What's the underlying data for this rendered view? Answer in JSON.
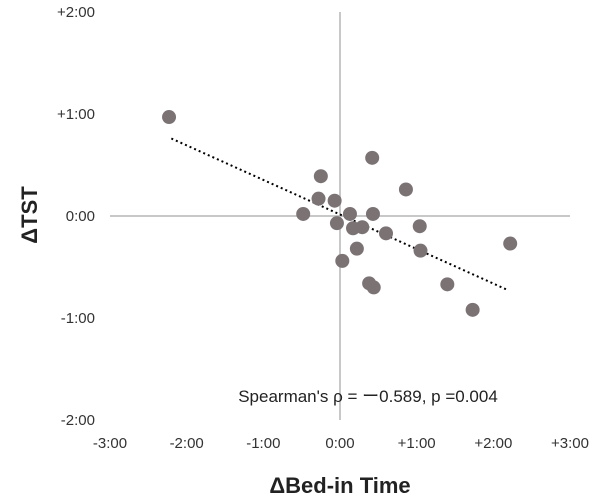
{
  "chart_data": {
    "type": "scatter",
    "title": "",
    "xlabel": "ΔBed-in Time",
    "ylabel": "ΔTST",
    "xlim": [
      -3,
      3
    ],
    "ylim": [
      -2,
      2
    ],
    "x_ticks": [
      -3,
      -2,
      -1,
      0,
      1,
      2,
      3
    ],
    "x_tick_labels": [
      "-3:00",
      "-2:00",
      "-1:00",
      "0:00",
      "+1:00",
      "+2:00",
      "+3:00"
    ],
    "y_ticks": [
      -2,
      -1,
      0,
      1,
      2
    ],
    "y_tick_labels": [
      "-2:00",
      "-1:00",
      "0:00",
      "+1:00",
      "+2:00"
    ],
    "grid": false,
    "point_color": "#7b7274",
    "trend_color": "#000000",
    "axis_color": "#c8c8c8",
    "points": [
      {
        "x": -2.23,
        "y": 0.97
      },
      {
        "x": -0.48,
        "y": 0.02
      },
      {
        "x": -0.28,
        "y": 0.17
      },
      {
        "x": -0.25,
        "y": 0.39
      },
      {
        "x": -0.07,
        "y": 0.15
      },
      {
        "x": -0.04,
        "y": -0.07
      },
      {
        "x": 0.03,
        "y": -0.44
      },
      {
        "x": 0.13,
        "y": 0.02
      },
      {
        "x": 0.17,
        "y": -0.12
      },
      {
        "x": 0.22,
        "y": -0.32
      },
      {
        "x": 0.29,
        "y": -0.11
      },
      {
        "x": 0.38,
        "y": -0.66
      },
      {
        "x": 0.42,
        "y": 0.57
      },
      {
        "x": 0.43,
        "y": 0.02
      },
      {
        "x": 0.44,
        "y": -0.7
      },
      {
        "x": 0.6,
        "y": -0.17
      },
      {
        "x": 0.86,
        "y": 0.26
      },
      {
        "x": 1.04,
        "y": -0.1
      },
      {
        "x": 1.05,
        "y": -0.34
      },
      {
        "x": 1.4,
        "y": -0.67
      },
      {
        "x": 1.73,
        "y": -0.92
      },
      {
        "x": 2.22,
        "y": -0.27
      }
    ],
    "trendline": {
      "x": [
        -2.2,
        2.2
      ],
      "y": [
        0.76,
        -0.73
      ]
    },
    "annotation": "Spearman's ρ = ー0.589, p =0.004"
  }
}
